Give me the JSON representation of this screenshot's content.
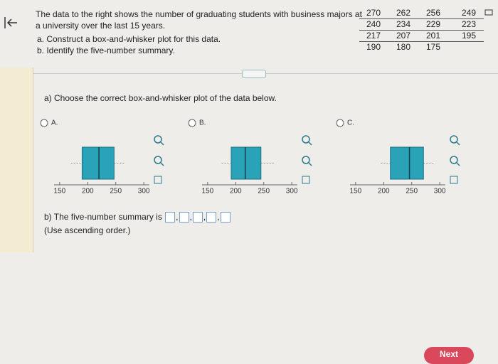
{
  "question": {
    "text": "The data to the right shows the number of graduating students with business majors at a university over the last 15 years.",
    "task_a": "a. Construct a box-and-whisker plot for this data.",
    "task_b": "b. Identify the five-number summary."
  },
  "data_table": {
    "rows": [
      [
        270,
        262,
        256,
        249
      ],
      [
        240,
        234,
        229,
        223
      ],
      [
        217,
        207,
        201,
        195
      ],
      [
        190,
        180,
        175
      ]
    ]
  },
  "part_a": {
    "prompt": "a) Choose the correct box-and-whisker plot of the data below.",
    "options": [
      {
        "label": "A.",
        "min": 170,
        "q1": 190,
        "median": 220,
        "q3": 247,
        "max": 265,
        "xlim": [
          140,
          310
        ],
        "xticks": [
          150,
          200,
          250,
          300
        ]
      },
      {
        "label": "B.",
        "min": 175,
        "q1": 192,
        "median": 217,
        "q3": 245,
        "max": 270,
        "xlim": [
          140,
          310
        ],
        "xticks": [
          150,
          200,
          250,
          300
        ]
      },
      {
        "label": "C.",
        "min": 195,
        "q1": 212,
        "median": 246,
        "q3": 271,
        "max": 290,
        "xlim": [
          140,
          310
        ],
        "xticks": [
          150,
          200,
          250,
          300
        ]
      }
    ]
  },
  "part_b": {
    "prompt": "b) The five-number summary is",
    "separator": ",",
    "hint": "(Use ascending order.)"
  },
  "next_button": "Next"
}
